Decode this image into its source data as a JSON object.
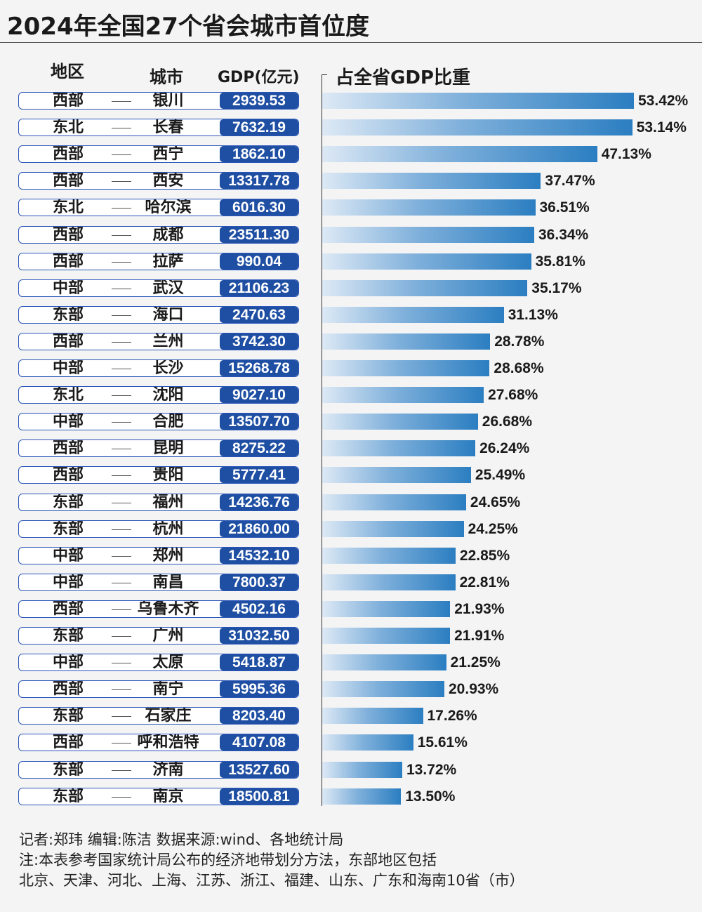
{
  "title": "2024年全国27个省会城市首位度",
  "headers": {
    "region": "地区",
    "city": "城市",
    "gdp": "GDP(亿元)",
    "share": "占全省GDP比重"
  },
  "chart_data": {
    "type": "bar",
    "orientation": "horizontal",
    "title": "2024年全国27个省会城市首位度",
    "value_label": "占全省GDP比重",
    "unit": "%",
    "xlim": [
      0,
      53.42
    ],
    "rows": [
      {
        "region": "西部",
        "city": "银川",
        "gdp": "2939.53",
        "share": 53.42,
        "share_label": "53.42%"
      },
      {
        "region": "东北",
        "city": "长春",
        "gdp": "7632.19",
        "share": 53.14,
        "share_label": "53.14%"
      },
      {
        "region": "西部",
        "city": "西宁",
        "gdp": "1862.10",
        "share": 47.13,
        "share_label": "47.13%"
      },
      {
        "region": "西部",
        "city": "西安",
        "gdp": "13317.78",
        "share": 37.47,
        "share_label": "37.47%"
      },
      {
        "region": "东北",
        "city": "哈尔滨",
        "gdp": "6016.30",
        "share": 36.51,
        "share_label": "36.51%"
      },
      {
        "region": "西部",
        "city": "成都",
        "gdp": "23511.30",
        "share": 36.34,
        "share_label": "36.34%"
      },
      {
        "region": "西部",
        "city": "拉萨",
        "gdp": "990.04",
        "share": 35.81,
        "share_label": "35.81%"
      },
      {
        "region": "中部",
        "city": "武汉",
        "gdp": "21106.23",
        "share": 35.17,
        "share_label": "35.17%"
      },
      {
        "region": "东部",
        "city": "海口",
        "gdp": "2470.63",
        "share": 31.13,
        "share_label": "31.13%"
      },
      {
        "region": "西部",
        "city": "兰州",
        "gdp": "3742.30",
        "share": 28.78,
        "share_label": "28.78%"
      },
      {
        "region": "中部",
        "city": "长沙",
        "gdp": "15268.78",
        "share": 28.68,
        "share_label": "28.68%"
      },
      {
        "region": "东北",
        "city": "沈阳",
        "gdp": "9027.10",
        "share": 27.68,
        "share_label": "27.68%"
      },
      {
        "region": "中部",
        "city": "合肥",
        "gdp": "13507.70",
        "share": 26.68,
        "share_label": "26.68%"
      },
      {
        "region": "西部",
        "city": "昆明",
        "gdp": "8275.22",
        "share": 26.24,
        "share_label": "26.24%"
      },
      {
        "region": "西部",
        "city": "贵阳",
        "gdp": "5777.41",
        "share": 25.49,
        "share_label": "25.49%"
      },
      {
        "region": "东部",
        "city": "福州",
        "gdp": "14236.76",
        "share": 24.65,
        "share_label": "24.65%"
      },
      {
        "region": "东部",
        "city": "杭州",
        "gdp": "21860.00",
        "share": 24.25,
        "share_label": "24.25%"
      },
      {
        "region": "中部",
        "city": "郑州",
        "gdp": "14532.10",
        "share": 22.85,
        "share_label": "22.85%"
      },
      {
        "region": "中部",
        "city": "南昌",
        "gdp": "7800.37",
        "share": 22.81,
        "share_label": "22.81%"
      },
      {
        "region": "西部",
        "city": "乌鲁木齐",
        "gdp": "4502.16",
        "share": 21.93,
        "share_label": "21.93%"
      },
      {
        "region": "东部",
        "city": "广州",
        "gdp": "31032.50",
        "share": 21.91,
        "share_label": "21.91%"
      },
      {
        "region": "中部",
        "city": "太原",
        "gdp": "5418.87",
        "share": 21.25,
        "share_label": "21.25%"
      },
      {
        "region": "西部",
        "city": "南宁",
        "gdp": "5995.36",
        "share": 20.93,
        "share_label": "20.93%"
      },
      {
        "region": "东部",
        "city": "石家庄",
        "gdp": "8203.40",
        "share": 17.26,
        "share_label": "17.26%"
      },
      {
        "region": "西部",
        "city": "呼和浩特",
        "gdp": "4107.08",
        "share": 15.61,
        "share_label": "15.61%"
      },
      {
        "region": "东部",
        "city": "济南",
        "gdp": "13527.60",
        "share": 13.72,
        "share_label": "13.72%"
      },
      {
        "region": "东部",
        "city": "南京",
        "gdp": "18500.81",
        "share": 13.5,
        "share_label": "13.50%"
      }
    ]
  },
  "footer": {
    "credits": "记者:郑玮  编辑:陈洁  数据来源:wind、各地统计局",
    "note_line1": "注:本表参考国家统计局公布的经济地带划分方法，东部地区包括",
    "note_line2": "北京、天津、河北、上海、江苏、浙江、福建、山东、广东和海南10省（市）"
  }
}
